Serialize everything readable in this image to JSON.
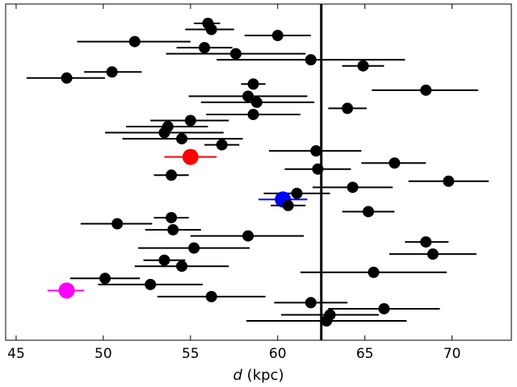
{
  "chart_data": {
    "type": "scatter",
    "xlabel_var": "d",
    "xlabel_unit": " (kpc)",
    "xlim": [
      44.4,
      73.4
    ],
    "xticks": [
      45,
      50,
      55,
      60,
      65,
      70
    ],
    "grid": false,
    "y_axis": "row index (no labels)",
    "vline": 62.5,
    "points": [
      {
        "x": 56.0,
        "xerr_lo": 0.8,
        "xerr_hi": 0.7,
        "color": "#000000"
      },
      {
        "x": 56.2,
        "xerr_lo": 1.5,
        "xerr_hi": 1.3,
        "color": "#000000"
      },
      {
        "x": 60.0,
        "xerr_lo": 1.9,
        "xerr_hi": 1.9,
        "color": "#000000"
      },
      {
        "x": 51.8,
        "xerr_lo": 3.3,
        "xerr_hi": 3.2,
        "color": "#000000"
      },
      {
        "x": 55.8,
        "xerr_lo": 1.6,
        "xerr_hi": 1.6,
        "color": "#000000"
      },
      {
        "x": 57.6,
        "xerr_lo": 4.0,
        "xerr_hi": 4.0,
        "color": "#000000"
      },
      {
        "x": 61.9,
        "xerr_lo": 5.4,
        "xerr_hi": 5.4,
        "color": "#000000"
      },
      {
        "x": 64.9,
        "xerr_lo": 1.2,
        "xerr_hi": 1.2,
        "color": "#000000"
      },
      {
        "x": 50.5,
        "xerr_lo": 1.6,
        "xerr_hi": 1.7,
        "color": "#000000"
      },
      {
        "x": 47.9,
        "xerr_lo": 2.3,
        "xerr_hi": 2.2,
        "color": "#000000"
      },
      {
        "x": 58.6,
        "xerr_lo": 0.7,
        "xerr_hi": 0.7,
        "color": "#000000"
      },
      {
        "x": 68.5,
        "xerr_lo": 3.1,
        "xerr_hi": 3.0,
        "color": "#000000"
      },
      {
        "x": 58.3,
        "xerr_lo": 3.4,
        "xerr_hi": 3.4,
        "color": "#000000"
      },
      {
        "x": 58.8,
        "xerr_lo": 3.2,
        "xerr_hi": 3.3,
        "color": "#000000"
      },
      {
        "x": 64.0,
        "xerr_lo": 1.1,
        "xerr_hi": 1.1,
        "color": "#000000"
      },
      {
        "x": 58.6,
        "xerr_lo": 2.7,
        "xerr_hi": 2.7,
        "color": "#000000"
      },
      {
        "x": 55.0,
        "xerr_lo": 2.3,
        "xerr_hi": 2.2,
        "color": "#000000"
      },
      {
        "x": 53.7,
        "xerr_lo": 2.4,
        "xerr_hi": 2.3,
        "color": "#000000"
      },
      {
        "x": 53.5,
        "xerr_lo": 3.4,
        "xerr_hi": 3.4,
        "color": "#000000"
      },
      {
        "x": 54.5,
        "xerr_lo": 3.4,
        "xerr_hi": 3.5,
        "color": "#000000"
      },
      {
        "x": 56.8,
        "xerr_lo": 1.0,
        "xerr_hi": 1.0,
        "color": "#000000"
      },
      {
        "x": 62.2,
        "xerr_lo": 2.7,
        "xerr_hi": 2.6,
        "color": "#000000"
      },
      {
        "x": 55.0,
        "xerr_lo": 1.5,
        "xerr_hi": 1.5,
        "color": "#ff0000",
        "size": "large"
      },
      {
        "x": 66.7,
        "xerr_lo": 1.9,
        "xerr_hi": 1.8,
        "color": "#000000"
      },
      {
        "x": 62.3,
        "xerr_lo": 1.9,
        "xerr_hi": 1.9,
        "color": "#000000"
      },
      {
        "x": 53.9,
        "xerr_lo": 1.0,
        "xerr_hi": 1.0,
        "color": "#000000"
      },
      {
        "x": 69.8,
        "xerr_lo": 2.3,
        "xerr_hi": 2.3,
        "color": "#000000"
      },
      {
        "x": 64.3,
        "xerr_lo": 2.3,
        "xerr_hi": 2.3,
        "color": "#000000"
      },
      {
        "x": 61.1,
        "xerr_lo": 1.9,
        "xerr_hi": 1.9,
        "color": "#000000"
      },
      {
        "x": 60.3,
        "xerr_lo": 1.4,
        "xerr_hi": 1.4,
        "color": "#0000ff",
        "size": "large"
      },
      {
        "x": 60.6,
        "xerr_lo": 1.0,
        "xerr_hi": 1.0,
        "color": "#000000"
      },
      {
        "x": 65.2,
        "xerr_lo": 1.5,
        "xerr_hi": 1.5,
        "color": "#000000"
      },
      {
        "x": 53.9,
        "xerr_lo": 1.0,
        "xerr_hi": 1.0,
        "color": "#000000"
      },
      {
        "x": 50.8,
        "xerr_lo": 2.1,
        "xerr_hi": 2.0,
        "color": "#000000"
      },
      {
        "x": 54.0,
        "xerr_lo": 1.6,
        "xerr_hi": 1.6,
        "color": "#000000"
      },
      {
        "x": 58.3,
        "xerr_lo": 3.3,
        "xerr_hi": 3.2,
        "color": "#000000"
      },
      {
        "x": 68.5,
        "xerr_lo": 1.2,
        "xerr_hi": 1.3,
        "color": "#000000"
      },
      {
        "x": 55.2,
        "xerr_lo": 3.2,
        "xerr_hi": 3.2,
        "color": "#000000"
      },
      {
        "x": 68.9,
        "xerr_lo": 2.5,
        "xerr_hi": 2.5,
        "color": "#000000"
      },
      {
        "x": 53.5,
        "xerr_lo": 1.2,
        "xerr_hi": 1.2,
        "color": "#000000"
      },
      {
        "x": 54.5,
        "xerr_lo": 2.7,
        "xerr_hi": 2.7,
        "color": "#000000"
      },
      {
        "x": 65.5,
        "xerr_lo": 4.2,
        "xerr_hi": 4.2,
        "color": "#000000"
      },
      {
        "x": 50.1,
        "xerr_lo": 2.0,
        "xerr_hi": 2.0,
        "color": "#000000"
      },
      {
        "x": 52.7,
        "xerr_lo": 3.0,
        "xerr_hi": 3.0,
        "color": "#000000"
      },
      {
        "x": 47.9,
        "xerr_lo": 1.1,
        "xerr_hi": 1.0,
        "color": "#ff00ff",
        "size": "large"
      },
      {
        "x": 56.2,
        "xerr_lo": 3.1,
        "xerr_hi": 3.1,
        "color": "#000000"
      },
      {
        "x": 61.9,
        "xerr_lo": 2.1,
        "xerr_hi": 2.1,
        "color": "#000000"
      },
      {
        "x": 66.1,
        "xerr_lo": 3.2,
        "xerr_hi": 3.2,
        "color": "#000000"
      },
      {
        "x": 63.0,
        "xerr_lo": 2.8,
        "xerr_hi": 2.8,
        "color": "#000000"
      },
      {
        "x": 62.8,
        "xerr_lo": 4.6,
        "xerr_hi": 4.6,
        "color": "#000000"
      }
    ]
  }
}
